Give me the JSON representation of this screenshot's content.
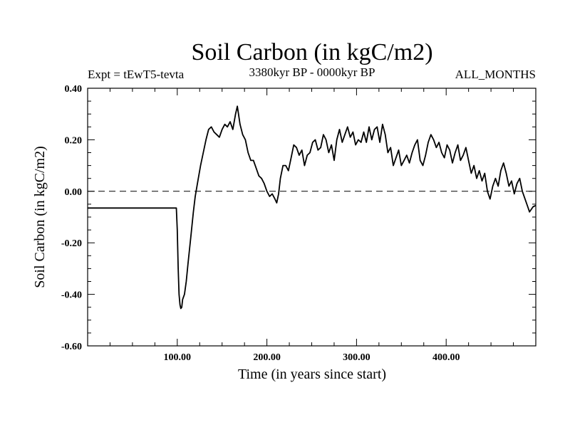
{
  "chart_data": {
    "type": "line",
    "title": "Soil Carbon (in kgC/m2)",
    "subtitle_left": "Expt = tEwT5-tevta",
    "subtitle_center": "3380kyr BP - 0000kyr BP",
    "subtitle_right": "ALL_MONTHS",
    "xlabel": "Time (in years since start)",
    "ylabel": "Soil Carbon (in kgC/m2)",
    "xlim": [
      0,
      500
    ],
    "ylim": [
      -0.6,
      0.4
    ],
    "x_ticks": [
      100,
      200,
      300,
      400
    ],
    "x_tick_labels": [
      "100.00",
      "200.00",
      "300.00",
      "400.00"
    ],
    "y_ticks": [
      -0.6,
      -0.4,
      -0.2,
      0.0,
      0.2,
      0.4
    ],
    "y_tick_labels": [
      "-0.60",
      "-0.40",
      "-0.20",
      "0.00",
      "0.20",
      "0.40"
    ],
    "reference_line": 0.0,
    "series": [
      {
        "name": "Soil Carbon",
        "x": [
          0,
          99,
          100,
          101,
          102,
          103,
          104,
          105,
          106,
          108,
          110,
          112,
          115,
          118,
          120,
          123,
          126,
          129,
          132,
          135,
          138,
          141,
          144,
          147,
          150,
          153,
          156,
          159,
          162,
          165,
          167,
          170,
          173,
          176,
          179,
          182,
          185,
          188,
          191,
          194,
          197,
          200,
          203,
          206,
          209,
          211,
          213,
          215,
          218,
          221,
          224,
          227,
          230,
          233,
          236,
          239,
          242,
          245,
          248,
          251,
          254,
          257,
          260,
          263,
          266,
          269,
          272,
          275,
          278,
          281,
          284,
          287,
          290,
          293,
          296,
          299,
          302,
          305,
          308,
          311,
          314,
          317,
          320,
          323,
          326,
          329,
          332,
          335,
          338,
          341,
          344,
          347,
          350,
          353,
          356,
          359,
          362,
          365,
          368,
          371,
          374,
          377,
          380,
          383,
          386,
          389,
          392,
          395,
          398,
          401,
          404,
          407,
          410,
          413,
          416,
          419,
          422,
          425,
          428,
          431,
          434,
          437,
          440,
          443,
          446,
          449,
          452,
          455,
          458,
          461,
          464,
          467,
          470,
          473,
          476,
          479,
          482,
          485,
          488,
          491,
          493,
          495,
          497,
          500
        ],
        "y": [
          -0.065,
          -0.065,
          -0.15,
          -0.3,
          -0.4,
          -0.44,
          -0.455,
          -0.45,
          -0.42,
          -0.4,
          -0.35,
          -0.28,
          -0.18,
          -0.08,
          -0.02,
          0.04,
          0.1,
          0.15,
          0.2,
          0.24,
          0.25,
          0.23,
          0.22,
          0.21,
          0.24,
          0.26,
          0.25,
          0.27,
          0.24,
          0.3,
          0.33,
          0.26,
          0.22,
          0.2,
          0.15,
          0.12,
          0.12,
          0.09,
          0.06,
          0.05,
          0.03,
          0.0,
          -0.02,
          -0.01,
          -0.03,
          -0.045,
          -0.01,
          0.05,
          0.1,
          0.1,
          0.08,
          0.13,
          0.18,
          0.17,
          0.14,
          0.16,
          0.1,
          0.14,
          0.15,
          0.19,
          0.2,
          0.16,
          0.17,
          0.22,
          0.2,
          0.15,
          0.18,
          0.12,
          0.2,
          0.24,
          0.19,
          0.22,
          0.25,
          0.21,
          0.23,
          0.18,
          0.2,
          0.19,
          0.23,
          0.19,
          0.25,
          0.2,
          0.24,
          0.25,
          0.19,
          0.26,
          0.22,
          0.15,
          0.17,
          0.1,
          0.13,
          0.16,
          0.1,
          0.12,
          0.14,
          0.11,
          0.15,
          0.18,
          0.2,
          0.12,
          0.1,
          0.14,
          0.19,
          0.22,
          0.2,
          0.17,
          0.19,
          0.15,
          0.13,
          0.18,
          0.16,
          0.11,
          0.15,
          0.18,
          0.12,
          0.14,
          0.17,
          0.12,
          0.07,
          0.1,
          0.05,
          0.08,
          0.04,
          0.07,
          0.0,
          -0.03,
          0.02,
          0.05,
          0.02,
          0.08,
          0.11,
          0.07,
          0.02,
          0.04,
          -0.01,
          0.03,
          0.05,
          0.0,
          -0.03,
          -0.06,
          -0.08,
          -0.07,
          -0.06,
          -0.055
        ]
      }
    ],
    "grid": false,
    "colors": {
      "line": "#000000",
      "background": "#ffffff"
    }
  }
}
